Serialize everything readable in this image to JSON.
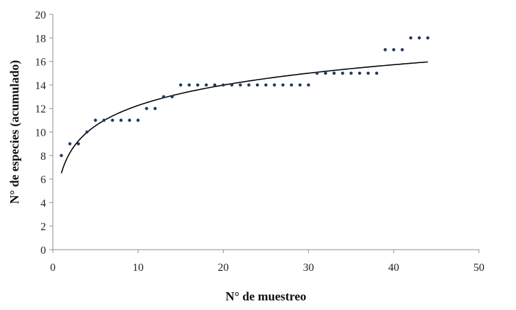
{
  "chart_data": {
    "type": "scatter",
    "title": "",
    "xlabel": "N° de muestreo",
    "ylabel": "N° de especies (acumulado)",
    "xlim": [
      0,
      50
    ],
    "ylim": [
      0,
      20
    ],
    "xticks": [
      0,
      10,
      20,
      30,
      40,
      50
    ],
    "yticks": [
      0,
      2,
      4,
      6,
      8,
      10,
      12,
      14,
      16,
      18,
      20
    ],
    "grid": false,
    "legend": "none",
    "marker_color": "#1f3864",
    "series": [
      {
        "x": [
          1,
          2,
          3,
          4,
          5,
          6,
          7,
          8,
          9,
          10,
          11,
          12,
          13,
          14,
          15,
          16,
          17,
          18,
          19,
          20,
          21,
          22,
          23,
          24,
          25,
          26,
          27,
          28,
          29,
          30,
          31,
          32,
          33,
          34,
          35,
          36,
          37,
          38,
          39,
          40,
          41,
          42,
          43,
          44
        ],
        "y": [
          8,
          9,
          9,
          10,
          11,
          11,
          11,
          11,
          11,
          11,
          12,
          12,
          13,
          13,
          14,
          14,
          14,
          14,
          14,
          14,
          14,
          14,
          14,
          14,
          14,
          14,
          14,
          14,
          14,
          14,
          15,
          15,
          15,
          15,
          15,
          15,
          15,
          15,
          17,
          17,
          17,
          18,
          18,
          18
        ]
      }
    ],
    "trendline": {
      "type": "logarithmic",
      "intercept": 6.5,
      "slope": 2.5,
      "x_range": [
        1,
        44
      ],
      "color": "#000000"
    }
  }
}
